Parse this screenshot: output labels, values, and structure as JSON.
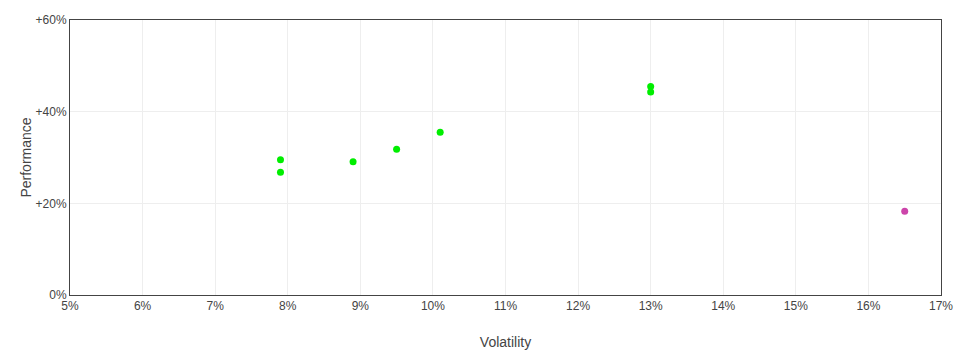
{
  "chart_data": {
    "type": "scatter",
    "xlabel": "Volatility",
    "ylabel": "Performance",
    "series": [
      {
        "color": "#00ee00",
        "x": [
          0.079,
          0.079,
          0.089,
          0.095,
          0.101,
          0.13,
          0.13
        ],
        "values": [
          0.295,
          0.268,
          0.291,
          0.318,
          0.355,
          0.455,
          0.443
        ]
      },
      {
        "color": "#cc44aa",
        "x": [
          0.165
        ],
        "values": [
          0.183
        ]
      }
    ],
    "xlim": [
      0.05,
      0.17
    ],
    "ylim": [
      0.0,
      0.6
    ],
    "xticks": [
      {
        "value": 0.05,
        "label": "5%"
      },
      {
        "value": 0.06,
        "label": "6%"
      },
      {
        "value": 0.07,
        "label": "7%"
      },
      {
        "value": 0.08,
        "label": "8%"
      },
      {
        "value": 0.09,
        "label": "9%"
      },
      {
        "value": 0.1,
        "label": "10%"
      },
      {
        "value": 0.11,
        "label": "11%"
      },
      {
        "value": 0.12,
        "label": "12%"
      },
      {
        "value": 0.13,
        "label": "13%"
      },
      {
        "value": 0.14,
        "label": "14%"
      },
      {
        "value": 0.15,
        "label": "15%"
      },
      {
        "value": 0.16,
        "label": "16%"
      },
      {
        "value": 0.17,
        "label": "17%"
      }
    ],
    "yticks": [
      {
        "value": 0.0,
        "label": "0%"
      },
      {
        "value": 0.2,
        "label": "+20%"
      },
      {
        "value": 0.4,
        "label": "+40%"
      },
      {
        "value": 0.6,
        "label": "+60%"
      }
    ],
    "grid": true
  }
}
